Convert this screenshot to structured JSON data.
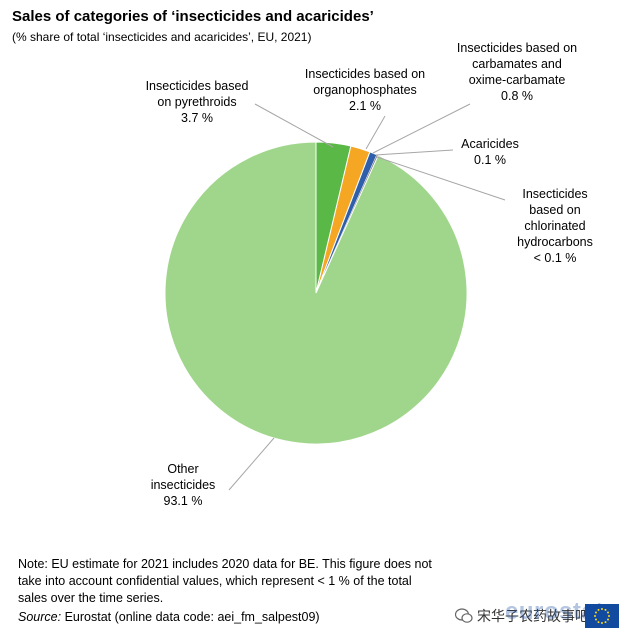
{
  "header": {
    "title": "Sales of categories of ‘insecticides and acaricides’",
    "subtitle": "(% share of total ‘insecticides and acaricides’, EU, 2021)"
  },
  "chart_data": {
    "type": "pie",
    "title": "Sales of categories of ‘insecticides and acaricides’",
    "subtitle": "(% share of total ‘insecticides and acaricides’, EU, 2021)",
    "slices": [
      {
        "name": "Insecticides based on pyrethroids",
        "value": 3.7,
        "label_lines": [
          "Insecticides based",
          "on pyrethroids",
          "3.7 %"
        ],
        "color": "#5ab946"
      },
      {
        "name": "Insecticides based on organophosphates",
        "value": 2.1,
        "label_lines": [
          "Insecticides based on",
          "organophosphates",
          "2.1 %"
        ],
        "color": "#f5a623"
      },
      {
        "name": "Insecticides based on carbamates and oxime-carbamate",
        "value": 0.8,
        "label_lines": [
          "Insecticides based on",
          "carbamates and",
          "oxime-carbamate",
          "0.8 %"
        ],
        "color": "#2f5faa"
      },
      {
        "name": "Acaricides",
        "value": 0.1,
        "label_lines": [
          "Acaricides",
          "0.1 %"
        ],
        "color": "#7f7f7f"
      },
      {
        "name": "Insecticides based on chlorinated hydrocarbons",
        "value": 0.05,
        "label_lines": [
          "Insecticides",
          "based on",
          "chlorinated",
          "hydrocarbons",
          "< 0.1 %"
        ],
        "color": "#1f3d7a"
      },
      {
        "name": "Other insecticides",
        "value": 93.1,
        "label_lines": [
          "Other",
          "insecticides",
          "93.1 %"
        ],
        "color": "#a0d68b"
      }
    ],
    "start": "12 o'clock",
    "direction": "clockwise",
    "legend": "none"
  },
  "footer": {
    "note": "Note: EU estimate for 2021 includes 2020 data for BE. This figure does not take into account confidential values, which represent < 1 % of the total sales over the time series.",
    "source_label": "Source:",
    "source_text": " Eurostat (online data code: aei_fm_salpest09)",
    "logo": "eurostat",
    "watermark": "宋华子农药故事吧"
  }
}
